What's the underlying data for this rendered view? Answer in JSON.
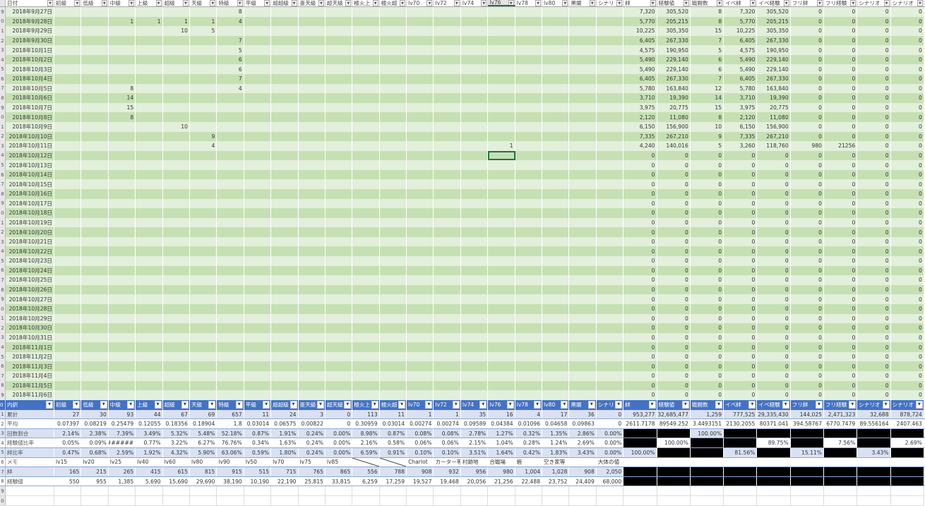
{
  "columns": [
    "日付",
    "初級",
    "低級",
    "中級",
    "上級",
    "超級",
    "天級",
    "特級",
    "平級",
    "超超級",
    "亜天級",
    "超天級",
    "極火上",
    "極火超",
    "lv70",
    "lv72",
    "lv74",
    "lv76",
    "lv78",
    "lv80",
    "黒闇",
    "シナリ",
    "絆",
    "経験値",
    "戦闘数",
    "イベ絆",
    "イベ経験",
    "フリ絆",
    "フリ経験",
    "シナリオ",
    "シナリオ"
  ],
  "selected_column": "lv76",
  "selected_cell": {
    "date": "2018年10月12日",
    "column": "lv76"
  },
  "colors": {
    "band_light": "#e2efda",
    "band_dark": "#c6e0b4",
    "table_header": "#4472c4",
    "table_band": "#d9e1f2",
    "selection": "#217346"
  },
  "rows": [
    {
      "date": "2018年9月27日",
      "counts": {
        "特級": "8"
      },
      "stats": [
        "7,320",
        "305,520",
        "8",
        "7,320",
        "305,520",
        "0",
        "0",
        "0",
        "0"
      ]
    },
    {
      "date": "2018年9月28日",
      "counts": {
        "中級": "1",
        "上級": "1",
        "超級": "1",
        "天級": "1",
        "特級": "4"
      },
      "stats": [
        "5,770",
        "205,215",
        "8",
        "5,770",
        "205,215",
        "0",
        "0",
        "0",
        "0"
      ]
    },
    {
      "date": "2018年9月29日",
      "counts": {
        "超級": "10",
        "天級": "5"
      },
      "stats": [
        "10,225",
        "305,350",
        "15",
        "10,225",
        "305,350",
        "0",
        "0",
        "0",
        "0"
      ]
    },
    {
      "date": "2018年9月30日",
      "counts": {
        "特級": "7"
      },
      "stats": [
        "6,405",
        "267,330",
        "7",
        "6,405",
        "267,330",
        "0",
        "0",
        "0",
        "0"
      ]
    },
    {
      "date": "2018年10月1日",
      "counts": {
        "特級": "5"
      },
      "stats": [
        "4,575",
        "190,950",
        "5",
        "4,575",
        "190,950",
        "0",
        "0",
        "0",
        "0"
      ]
    },
    {
      "date": "2018年10月2日",
      "counts": {
        "特級": "6"
      },
      "stats": [
        "5,490",
        "229,140",
        "6",
        "5,490",
        "229,140",
        "0",
        "0",
        "0",
        "0"
      ]
    },
    {
      "date": "2018年10月3日",
      "counts": {
        "特級": "6"
      },
      "stats": [
        "5,490",
        "229,140",
        "6",
        "5,490",
        "229,140",
        "0",
        "0",
        "0",
        "0"
      ]
    },
    {
      "date": "2018年10月4日",
      "counts": {
        "特級": "7"
      },
      "stats": [
        "6,405",
        "267,330",
        "7",
        "6,405",
        "267,330",
        "0",
        "0",
        "0",
        "0"
      ]
    },
    {
      "date": "2018年10月5日",
      "counts": {
        "中級": "8",
        "特級": "4"
      },
      "stats": [
        "5,780",
        "163,840",
        "12",
        "5,780",
        "163,840",
        "0",
        "0",
        "0",
        "0"
      ]
    },
    {
      "date": "2018年10月6日",
      "counts": {
        "中級": "14"
      },
      "stats": [
        "3,710",
        "19,390",
        "14",
        "3,710",
        "19,390",
        "0",
        "0",
        "0",
        "0"
      ]
    },
    {
      "date": "2018年10月7日",
      "counts": {
        "中級": "15"
      },
      "stats": [
        "3,975",
        "20,775",
        "15",
        "3,975",
        "20,775",
        "0",
        "0",
        "0",
        "0"
      ]
    },
    {
      "date": "2018年10月8日",
      "counts": {
        "中級": "8"
      },
      "stats": [
        "2,120",
        "11,080",
        "8",
        "2,120",
        "11,080",
        "0",
        "0",
        "0",
        "0"
      ]
    },
    {
      "date": "2018年10月9日",
      "counts": {
        "超級": "10"
      },
      "stats": [
        "6,150",
        "156,900",
        "10",
        "6,150",
        "156,900",
        "0",
        "0",
        "0",
        "0"
      ]
    },
    {
      "date": "2018年10月10日",
      "counts": {
        "天級": "9"
      },
      "stats": [
        "7,335",
        "267,210",
        "9",
        "7,335",
        "267,210",
        "0",
        "0",
        "0",
        "0"
      ]
    },
    {
      "date": "2018年10月11日",
      "counts": {
        "天級": "4",
        "lv76": "1"
      },
      "stats": [
        "4,240",
        "140,016",
        "5",
        "3,260",
        "118,760",
        "980",
        "21256",
        "0",
        "0"
      ]
    },
    {
      "date": "2018年10月12日",
      "counts": {},
      "stats": [
        "0",
        "0",
        "0",
        "0",
        "0",
        "0",
        "0",
        "0",
        "0"
      ]
    },
    {
      "date": "2018年10月13日",
      "counts": {},
      "stats": [
        "0",
        "0",
        "0",
        "0",
        "0",
        "0",
        "0",
        "0",
        "0"
      ]
    },
    {
      "date": "2018年10月14日",
      "counts": {},
      "stats": [
        "0",
        "0",
        "0",
        "0",
        "0",
        "0",
        "0",
        "0",
        "0"
      ]
    },
    {
      "date": "2018年10月15日",
      "counts": {},
      "stats": [
        "0",
        "0",
        "0",
        "0",
        "0",
        "0",
        "0",
        "0",
        "0"
      ]
    },
    {
      "date": "2018年10月16日",
      "counts": {},
      "stats": [
        "0",
        "0",
        "0",
        "0",
        "0",
        "0",
        "0",
        "0",
        "0"
      ]
    },
    {
      "date": "2018年10月17日",
      "counts": {},
      "stats": [
        "0",
        "0",
        "0",
        "0",
        "0",
        "0",
        "0",
        "0",
        "0"
      ]
    },
    {
      "date": "2018年10月18日",
      "counts": {},
      "stats": [
        "0",
        "0",
        "0",
        "0",
        "0",
        "0",
        "0",
        "0",
        "0"
      ]
    },
    {
      "date": "2018年10月19日",
      "counts": {},
      "stats": [
        "0",
        "0",
        "0",
        "0",
        "0",
        "0",
        "0",
        "0",
        "0"
      ]
    },
    {
      "date": "2018年10月20日",
      "counts": {},
      "stats": [
        "0",
        "0",
        "0",
        "0",
        "0",
        "0",
        "0",
        "0",
        "0"
      ]
    },
    {
      "date": "2018年10月21日",
      "counts": {},
      "stats": [
        "0",
        "0",
        "0",
        "0",
        "0",
        "0",
        "0",
        "0",
        "0"
      ]
    },
    {
      "date": "2018年10月22日",
      "counts": {},
      "stats": [
        "0",
        "0",
        "0",
        "0",
        "0",
        "0",
        "0",
        "0",
        "0"
      ]
    },
    {
      "date": "2018年10月23日",
      "counts": {},
      "stats": [
        "0",
        "0",
        "0",
        "0",
        "0",
        "0",
        "0",
        "0",
        "0"
      ]
    },
    {
      "date": "2018年10月24日",
      "counts": {},
      "stats": [
        "0",
        "0",
        "0",
        "0",
        "0",
        "0",
        "0",
        "0",
        "0"
      ]
    },
    {
      "date": "2018年10月25日",
      "counts": {},
      "stats": [
        "0",
        "0",
        "0",
        "0",
        "0",
        "0",
        "0",
        "0",
        "0"
      ]
    },
    {
      "date": "2018年10月26日",
      "counts": {},
      "stats": [
        "0",
        "0",
        "0",
        "0",
        "0",
        "0",
        "0",
        "0",
        "0"
      ]
    },
    {
      "date": "2018年10月27日",
      "counts": {},
      "stats": [
        "0",
        "0",
        "0",
        "0",
        "0",
        "0",
        "0",
        "0",
        "0"
      ]
    },
    {
      "date": "2018年10月28日",
      "counts": {},
      "stats": [
        "0",
        "0",
        "0",
        "0",
        "0",
        "0",
        "0",
        "0",
        "0"
      ]
    },
    {
      "date": "2018年10月29日",
      "counts": {},
      "stats": [
        "0",
        "0",
        "0",
        "0",
        "0",
        "0",
        "0",
        "0",
        "0"
      ]
    },
    {
      "date": "2018年10月30日",
      "counts": {},
      "stats": [
        "0",
        "0",
        "0",
        "0",
        "0",
        "0",
        "0",
        "0",
        "0"
      ]
    },
    {
      "date": "2018年10月31日",
      "counts": {},
      "stats": [
        "0",
        "0",
        "0",
        "0",
        "0",
        "0",
        "0",
        "0",
        "0"
      ]
    },
    {
      "date": "2018年11月1日",
      "counts": {},
      "stats": [
        "0",
        "0",
        "0",
        "0",
        "0",
        "0",
        "0",
        "0",
        "0"
      ]
    },
    {
      "date": "2018年11月2日",
      "counts": {},
      "stats": [
        "0",
        "0",
        "0",
        "0",
        "0",
        "0",
        "0",
        "0",
        "0"
      ]
    },
    {
      "date": "2018年11月3日",
      "counts": {},
      "stats": [
        "0",
        "0",
        "0",
        "0",
        "0",
        "0",
        "0",
        "0",
        "0"
      ]
    },
    {
      "date": "2018年11月4日",
      "counts": {},
      "stats": [
        "0",
        "0",
        "0",
        "0",
        "0",
        "0",
        "0",
        "0",
        "0"
      ]
    },
    {
      "date": "2018年11月5日",
      "counts": {},
      "stats": [
        "0",
        "0",
        "0",
        "0",
        "0",
        "0",
        "0",
        "0",
        "0"
      ]
    },
    {
      "date": "2018年11月6日",
      "counts": {},
      "stats": [
        "0",
        "0",
        "0",
        "0",
        "0",
        "0",
        "0",
        "0",
        "0"
      ]
    }
  ],
  "summary": {
    "header_label": "内訳",
    "rows": [
      {
        "label": "累計",
        "values": [
          "27",
          "30",
          "93",
          "44",
          "67",
          "69",
          "657",
          "11",
          "24",
          "3",
          "0",
          "113",
          "11",
          "1",
          "1",
          "35",
          "16",
          "4",
          "17",
          "36",
          "0",
          "953,277",
          "32,685,477",
          "1,259",
          "777,525",
          "29,335,430",
          "144,025",
          "2,471,323",
          "32,688",
          "878,724"
        ]
      },
      {
        "label": "平均",
        "values": [
          "0.07397",
          "0.08219",
          "0.25479",
          "0.12055",
          "0.18356",
          "0.18904",
          "1.8",
          "0.03014",
          "0.06575",
          "0.00822",
          "0",
          "0.30959",
          "0.03014",
          "0.00274",
          "0.00274",
          "0.09589",
          "0.04384",
          "0.01096",
          "0.04658",
          "0.09863",
          "0",
          "2611.7178",
          "89549.252",
          "3.4493151",
          "2130.2055",
          "80371.041",
          "394.58767",
          "6770.7479",
          "89.556164",
          "2407.463"
        ]
      },
      {
        "label": "回数割合",
        "values": [
          "2.14%",
          "2.38%",
          "7.39%",
          "3.49%",
          "5.32%",
          "5.48%",
          "52.18%",
          "0.87%",
          "1.91%",
          "0.24%",
          "0.00%",
          "8.98%",
          "0.87%",
          "0.08%",
          "0.08%",
          "2.78%",
          "1.27%",
          "0.32%",
          "1.35%",
          "2.86%",
          "0.00%",
          null,
          null,
          "100.00%",
          null,
          null,
          null,
          null,
          null,
          null
        ]
      },
      {
        "label": "経験値比率",
        "values": [
          "0.05%",
          "0.09%",
          "#######",
          "0.77%",
          "3.22%",
          "6.27%",
          "76.76%",
          "0.34%",
          "1.63%",
          "0.24%",
          "0.00%",
          "2.16%",
          "0.58%",
          "0.06%",
          "0.06%",
          "2.15%",
          "1.04%",
          "0.28%",
          "1.24%",
          "2.69%",
          "0.00%",
          null,
          "100.00%",
          null,
          null,
          "89.75%",
          null,
          "7.56%",
          null,
          "2.69%"
        ]
      },
      {
        "label": "絆比率",
        "values": [
          "0.47%",
          "0.68%",
          "2.59%",
          "1.92%",
          "4.32%",
          "5.90%",
          "63.06%",
          "0.59%",
          "1.80%",
          "0.24%",
          "0.00%",
          "6.59%",
          "0.91%",
          "0.10%",
          "0.10%",
          "3.51%",
          "1.64%",
          "0.42%",
          "1.83%",
          "3.43%",
          "0.00%",
          "100.00%",
          null,
          null,
          "81.56%",
          null,
          "15.11%",
          null,
          "3.43%",
          null
        ]
      },
      {
        "label": "メモ",
        "values": [
          "lv15",
          "lv20",
          "lv25",
          "lv40",
          "lv60",
          "lv80",
          "lv90",
          "lv50",
          "lv70",
          "lv75",
          "lv85",
          "/",
          "/",
          "Charlot",
          "カーター等",
          "村跡地",
          "合戦場",
          "砦",
          "空き家等",
          "",
          "大体の値",
          "",
          "",
          "",
          "",
          "",
          "",
          "",
          "",
          ""
        ]
      },
      {
        "label": "絆",
        "values": [
          "165",
          "215",
          "265",
          "415",
          "615",
          "815",
          "915",
          "515",
          "715",
          "765",
          "865",
          "556",
          "788",
          "908",
          "932",
          "956",
          "980",
          "1,004",
          "1,028",
          "908",
          "2,050",
          null,
          null,
          null,
          null,
          null,
          null,
          null,
          null,
          null
        ]
      },
      {
        "label": "経験値",
        "values": [
          "550",
          "955",
          "1,385",
          "5,690",
          "15,690",
          "29,690",
          "38,190",
          "10,190",
          "22,190",
          "25,815",
          "33,815",
          "6,259",
          "17,259",
          "19,527",
          "19,468",
          "20,056",
          "21,256",
          "22,488",
          "23,752",
          "24,409",
          "68,000",
          null,
          null,
          null,
          null,
          null,
          null,
          null,
          null,
          null
        ]
      }
    ]
  }
}
